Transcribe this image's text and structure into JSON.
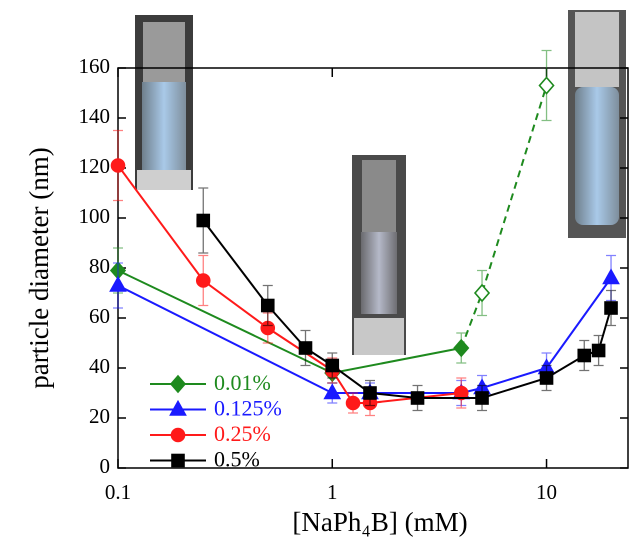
{
  "chart_data": {
    "type": "line",
    "x_label": "[NaPh₄B] (mM)",
    "y_label": "particle diameter (nm)",
    "log_x": true,
    "xlim": [
      0.1,
      24
    ],
    "xticks": [
      0.1,
      1,
      10
    ],
    "ylim": [
      0,
      160
    ],
    "yticks": [
      0,
      20,
      40,
      60,
      80,
      100,
      120,
      140,
      160
    ],
    "legend": "lower left",
    "series": [
      {
        "name": "0.01%",
        "color": "#1e8a1e",
        "marker": "diamond",
        "x": [
          0.1,
          1,
          4,
          5,
          10
        ],
        "values": [
          79,
          38,
          48,
          70,
          153
        ],
        "errors": [
          9,
          4,
          6,
          9,
          14
        ],
        "hollow": [
          false,
          false,
          false,
          true,
          true
        ]
      },
      {
        "name": "0.125%",
        "color": "#1a1aff",
        "marker": "triangle",
        "x": [
          0.1,
          1,
          1.5,
          4,
          5,
          10,
          20
        ],
        "values": [
          73,
          30,
          30,
          30,
          32,
          40,
          76
        ],
        "errors": [
          9,
          4,
          4,
          5,
          5,
          6,
          9
        ],
        "hollow": [
          false,
          false,
          false,
          false,
          false,
          false,
          false
        ]
      },
      {
        "name": "0.25%",
        "color": "#ff1a1a",
        "marker": "circle",
        "x": [
          0.1,
          0.25,
          0.5,
          1,
          1.25,
          1.5,
          4
        ],
        "values": [
          121,
          75,
          56,
          39,
          26,
          26,
          30
        ],
        "errors": [
          14,
          10,
          6,
          5,
          4,
          5,
          6
        ],
        "hollow": [
          false,
          false,
          false,
          false,
          false,
          false,
          false
        ]
      },
      {
        "name": "0.5%",
        "color": "#000000",
        "marker": "square",
        "x": [
          0.25,
          0.5,
          0.75,
          1,
          1.5,
          2.5,
          5,
          10,
          15,
          17.5,
          20
        ],
        "values": [
          99,
          65,
          48,
          41,
          30,
          28,
          28,
          36,
          45,
          47,
          64
        ],
        "errors": [
          13,
          8,
          7,
          5,
          5,
          5,
          5,
          5,
          6,
          6,
          7
        ],
        "hollow": [
          false,
          false,
          false,
          false,
          false,
          false,
          false,
          false,
          false,
          false,
          false
        ]
      }
    ]
  }
}
